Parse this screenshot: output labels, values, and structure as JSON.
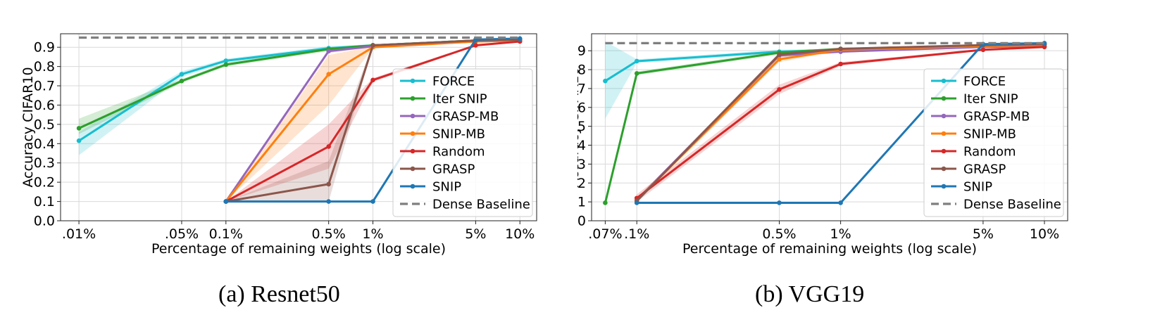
{
  "colors": {
    "FORCE": "#17becf",
    "Iter SNIP": "#2ca02c",
    "GRASP-MB": "#9467bd",
    "SNIP-MB": "#ff7f0e",
    "Random": "#d62728",
    "GRASP": "#8c564b",
    "SNIP": "#1f77b4",
    "Dense Baseline": "#7f7f7f"
  },
  "captions": {
    "a": "(a) Resnet50",
    "b": "(b) VGG19"
  },
  "chart_data": [
    {
      "type": "line",
      "title": "",
      "xlabel": "Percentage of remaining weights (log scale)",
      "ylabel": "Accuracy CIFAR10",
      "xscale": "log",
      "xlim": [
        0.0075,
        13
      ],
      "ylim": [
        0.0,
        0.97
      ],
      "grid": true,
      "legend_position": "lower-right",
      "x_ticks": [
        {
          "v": 0.01,
          "label": ".01%"
        },
        {
          "v": 0.05,
          "label": ".05%"
        },
        {
          "v": 0.1,
          "label": "0.1%"
        },
        {
          "v": 0.5,
          "label": "0.5%"
        },
        {
          "v": 1,
          "label": "1%"
        },
        {
          "v": 5,
          "label": "5%"
        },
        {
          "v": 10,
          "label": "10%"
        }
      ],
      "y_ticks": [
        {
          "v": 0.0,
          "label": "0.0"
        },
        {
          "v": 0.1,
          "label": "0.1"
        },
        {
          "v": 0.2,
          "label": "0.2"
        },
        {
          "v": 0.3,
          "label": "0.3"
        },
        {
          "v": 0.4,
          "label": "0.4"
        },
        {
          "v": 0.5,
          "label": "0.5"
        },
        {
          "v": 0.6,
          "label": "0.6"
        },
        {
          "v": 0.7,
          "label": "0.7"
        },
        {
          "v": 0.8,
          "label": "0.8"
        },
        {
          "v": 0.9,
          "label": "0.9"
        }
      ],
      "series": [
        {
          "name": "FORCE",
          "x": [
            0.01,
            0.05,
            0.1,
            0.5,
            1,
            5,
            10
          ],
          "y": [
            0.415,
            0.76,
            0.83,
            0.895,
            0.91,
            0.935,
            0.94
          ],
          "lower": [
            0.34,
            0.745,
            0.82,
            0.885,
            0.905,
            0.93,
            0.935
          ],
          "upper": [
            0.46,
            0.775,
            0.84,
            0.905,
            0.915,
            0.94,
            0.945
          ]
        },
        {
          "name": "Iter SNIP",
          "x": [
            0.01,
            0.05,
            0.1,
            0.5,
            1,
            5,
            10
          ],
          "y": [
            0.48,
            0.725,
            0.81,
            0.89,
            0.91,
            0.935,
            0.94
          ],
          "lower": [
            0.45,
            0.715,
            0.8,
            0.88,
            0.905,
            0.93,
            0.935
          ],
          "upper": [
            0.53,
            0.735,
            0.82,
            0.9,
            0.915,
            0.94,
            0.945
          ]
        },
        {
          "name": "GRASP-MB",
          "x": [
            0.1,
            0.5,
            1,
            5,
            10
          ],
          "y": [
            0.1,
            0.88,
            0.905,
            0.93,
            0.935
          ],
          "lower": [
            0.1,
            0.87,
            0.9,
            0.925,
            0.93
          ],
          "upper": [
            0.1,
            0.89,
            0.91,
            0.935,
            0.94
          ]
        },
        {
          "name": "SNIP-MB",
          "x": [
            0.1,
            0.5,
            1,
            5,
            10
          ],
          "y": [
            0.1,
            0.76,
            0.9,
            0.93,
            0.935
          ],
          "lower": [
            0.1,
            0.6,
            0.895,
            0.925,
            0.93
          ],
          "upper": [
            0.1,
            0.86,
            0.905,
            0.935,
            0.94
          ]
        },
        {
          "name": "Random",
          "x": [
            0.1,
            0.5,
            1,
            5,
            10
          ],
          "y": [
            0.1,
            0.385,
            0.73,
            0.91,
            0.93
          ],
          "lower": [
            0.1,
            0.27,
            0.72,
            0.905,
            0.925
          ],
          "upper": [
            0.1,
            0.5,
            0.74,
            0.915,
            0.935
          ]
        },
        {
          "name": "GRASP",
          "x": [
            0.1,
            0.5,
            1,
            5,
            10
          ],
          "y": [
            0.1,
            0.19,
            0.91,
            0.935,
            0.94
          ],
          "lower": [
            0.1,
            0.1,
            0.905,
            0.93,
            0.935
          ],
          "upper": [
            0.1,
            0.31,
            0.915,
            0.94,
            0.945
          ]
        },
        {
          "name": "SNIP",
          "x": [
            0.1,
            0.5,
            1,
            5,
            10
          ],
          "y": [
            0.1,
            0.1,
            0.1,
            0.94,
            0.945
          ],
          "lower": [
            0.1,
            0.1,
            0.1,
            0.935,
            0.94
          ],
          "upper": [
            0.1,
            0.1,
            0.1,
            0.945,
            0.95
          ]
        },
        {
          "name": "Dense Baseline",
          "style": "dashed",
          "x": [
            0.01,
            10
          ],
          "y": [
            0.95,
            0.95
          ]
        }
      ]
    },
    {
      "type": "line",
      "title": "",
      "xlabel": "Percentage of remaining weights (log scale)",
      "ylabel": "Accuracy CIFAR10",
      "xscale": "log",
      "xlim": [
        0.06,
        13
      ],
      "ylim": [
        0.0,
        0.99
      ],
      "grid": true,
      "legend_position": "lower-right",
      "x_ticks": [
        {
          "v": 0.07,
          "label": ".07%"
        },
        {
          "v": 0.1,
          "label": ".1%"
        },
        {
          "v": 0.5,
          "label": "0.5%"
        },
        {
          "v": 1,
          "label": "1%"
        },
        {
          "v": 5,
          "label": "5%"
        },
        {
          "v": 10,
          "label": "10%"
        }
      ],
      "y_ticks": [
        {
          "v": 0.0,
          "label": "0.0"
        },
        {
          "v": 0.1,
          "label": "0.1"
        },
        {
          "v": 0.2,
          "label": "0.2"
        },
        {
          "v": 0.3,
          "label": "0.3"
        },
        {
          "v": 0.4,
          "label": "0.4"
        },
        {
          "v": 0.5,
          "label": "0.5"
        },
        {
          "v": 0.6,
          "label": "0.6"
        },
        {
          "v": 0.7,
          "label": "0.7"
        },
        {
          "v": 0.8,
          "label": "0.8"
        },
        {
          "v": 0.9,
          "label": "0.9"
        }
      ],
      "series": [
        {
          "name": "FORCE",
          "x": [
            0.07,
            0.1,
            0.5,
            1,
            5,
            10
          ],
          "y": [
            0.74,
            0.845,
            0.895,
            0.905,
            0.925,
            0.935
          ],
          "lower": [
            0.54,
            0.835,
            0.885,
            0.9,
            0.92,
            0.93
          ],
          "upper": [
            0.95,
            0.855,
            0.905,
            0.91,
            0.93,
            0.94
          ]
        },
        {
          "name": "Iter SNIP",
          "x": [
            0.07,
            0.1,
            0.5,
            1,
            5,
            10
          ],
          "y": [
            0.095,
            0.78,
            0.89,
            0.91,
            0.925,
            0.935
          ],
          "lower": [
            0.09,
            0.77,
            0.88,
            0.905,
            0.92,
            0.93
          ],
          "upper": [
            0.1,
            0.79,
            0.9,
            0.915,
            0.93,
            0.94
          ]
        },
        {
          "name": "GRASP-MB",
          "x": [
            0.1,
            0.5,
            1,
            5,
            10
          ],
          "y": [
            0.11,
            0.875,
            0.895,
            0.92,
            0.925
          ],
          "lower": [
            0.1,
            0.865,
            0.89,
            0.915,
            0.92
          ],
          "upper": [
            0.12,
            0.885,
            0.9,
            0.925,
            0.93
          ]
        },
        {
          "name": "SNIP-MB",
          "x": [
            0.1,
            0.5,
            1,
            5,
            10
          ],
          "y": [
            0.11,
            0.855,
            0.905,
            0.925,
            0.93
          ],
          "lower": [
            0.1,
            0.84,
            0.9,
            0.92,
            0.925
          ],
          "upper": [
            0.12,
            0.87,
            0.91,
            0.93,
            0.935
          ]
        },
        {
          "name": "Random",
          "x": [
            0.1,
            0.5,
            1,
            5,
            10
          ],
          "y": [
            0.12,
            0.695,
            0.83,
            0.905,
            0.92
          ],
          "lower": [
            0.1,
            0.67,
            0.82,
            0.9,
            0.915
          ],
          "upper": [
            0.14,
            0.72,
            0.84,
            0.91,
            0.925
          ]
        },
        {
          "name": "GRASP",
          "x": [
            0.1,
            0.5,
            1,
            5,
            10
          ],
          "y": [
            0.105,
            0.88,
            0.91,
            0.93,
            0.935
          ],
          "lower": [
            0.095,
            0.87,
            0.905,
            0.925,
            0.93
          ],
          "upper": [
            0.115,
            0.89,
            0.915,
            0.935,
            0.94
          ]
        },
        {
          "name": "SNIP",
          "x": [
            0.1,
            0.5,
            1,
            5,
            10
          ],
          "y": [
            0.095,
            0.095,
            0.095,
            0.935,
            0.94
          ],
          "lower": [
            0.09,
            0.09,
            0.09,
            0.93,
            0.935
          ],
          "upper": [
            0.1,
            0.1,
            0.1,
            0.94,
            0.945
          ]
        },
        {
          "name": "Dense Baseline",
          "style": "dashed",
          "x": [
            0.07,
            10
          ],
          "y": [
            0.94,
            0.94
          ]
        }
      ]
    }
  ]
}
